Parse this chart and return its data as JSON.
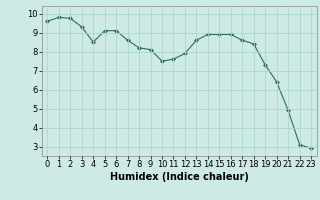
{
  "x": [
    0,
    1,
    2,
    3,
    4,
    5,
    6,
    7,
    8,
    9,
    10,
    11,
    12,
    13,
    14,
    15,
    16,
    17,
    18,
    19,
    20,
    21,
    22,
    23
  ],
  "y": [
    9.6,
    9.8,
    9.75,
    9.3,
    8.5,
    9.1,
    9.1,
    8.6,
    8.2,
    8.1,
    7.5,
    7.6,
    7.9,
    8.6,
    8.9,
    8.9,
    8.9,
    8.6,
    8.4,
    7.3,
    6.4,
    4.9,
    3.1,
    2.9
  ],
  "line_color": "#2e6b5e",
  "marker": "D",
  "marker_size": 2.0,
  "bg_color": "#ceeae6",
  "grid_color": "#aed4ce",
  "xlabel": "Humidex (Indice chaleur)",
  "xlabel_fontsize": 7,
  "tick_fontsize": 6,
  "ylim": [
    2.5,
    10.4
  ],
  "xlim": [
    -0.5,
    23.5
  ],
  "yticks": [
    3,
    4,
    5,
    6,
    7,
    8,
    9,
    10
  ],
  "xticks": [
    0,
    1,
    2,
    3,
    4,
    5,
    6,
    7,
    8,
    9,
    10,
    11,
    12,
    13,
    14,
    15,
    16,
    17,
    18,
    19,
    20,
    21,
    22,
    23
  ]
}
